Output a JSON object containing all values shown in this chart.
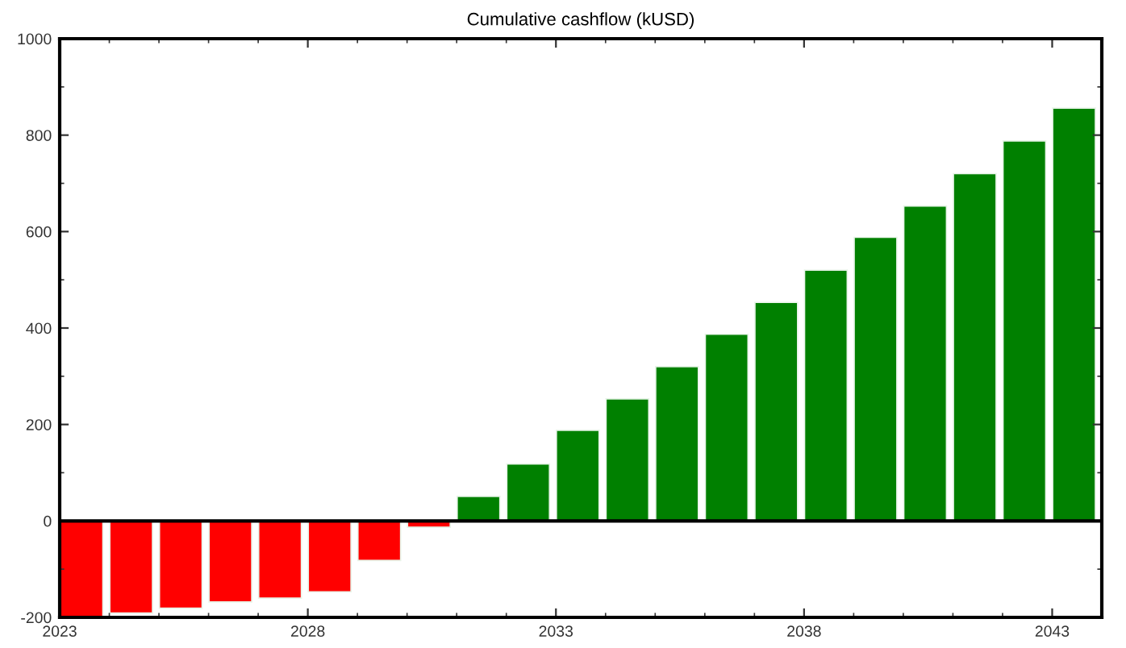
{
  "chart_data": {
    "type": "bar",
    "title": "Cumulative cashflow (kUSD)",
    "x": [
      2023.44,
      2024.44,
      2025.44,
      2026.44,
      2027.44,
      2028.44,
      2029.44,
      2030.44,
      2031.44,
      2032.44,
      2033.44,
      2034.44,
      2035.44,
      2036.44,
      2037.44,
      2038.44,
      2039.44,
      2040.44,
      2041.44,
      2042.44,
      2043.44
    ],
    "values": [
      -200,
      -191,
      -181,
      -168,
      -160,
      -147,
      -82,
      -13,
      51,
      118,
      188,
      253,
      320,
      387,
      453,
      520,
      588,
      653,
      720,
      788,
      856
    ],
    "colors": [
      "#ff0000",
      "#ff0000",
      "#ff0000",
      "#ff0000",
      "#ff0000",
      "#ff0000",
      "#ff0000",
      "#ff0000",
      "#008000",
      "#008000",
      "#008000",
      "#008000",
      "#008000",
      "#008000",
      "#008000",
      "#008000",
      "#008000",
      "#008000",
      "#008000",
      "#008000",
      "#008000"
    ],
    "xlim": [
      2023,
      2044
    ],
    "xticks": [
      2023,
      2028,
      2033,
      2038,
      2043
    ],
    "ylim": [
      -200,
      1000
    ],
    "yticks": [
      -200,
      0,
      200,
      400,
      600,
      800,
      1000
    ],
    "ref_lines": [
      {
        "axis": "y",
        "value": 0,
        "color": "#000000"
      }
    ],
    "grid": false,
    "legend": false
  }
}
